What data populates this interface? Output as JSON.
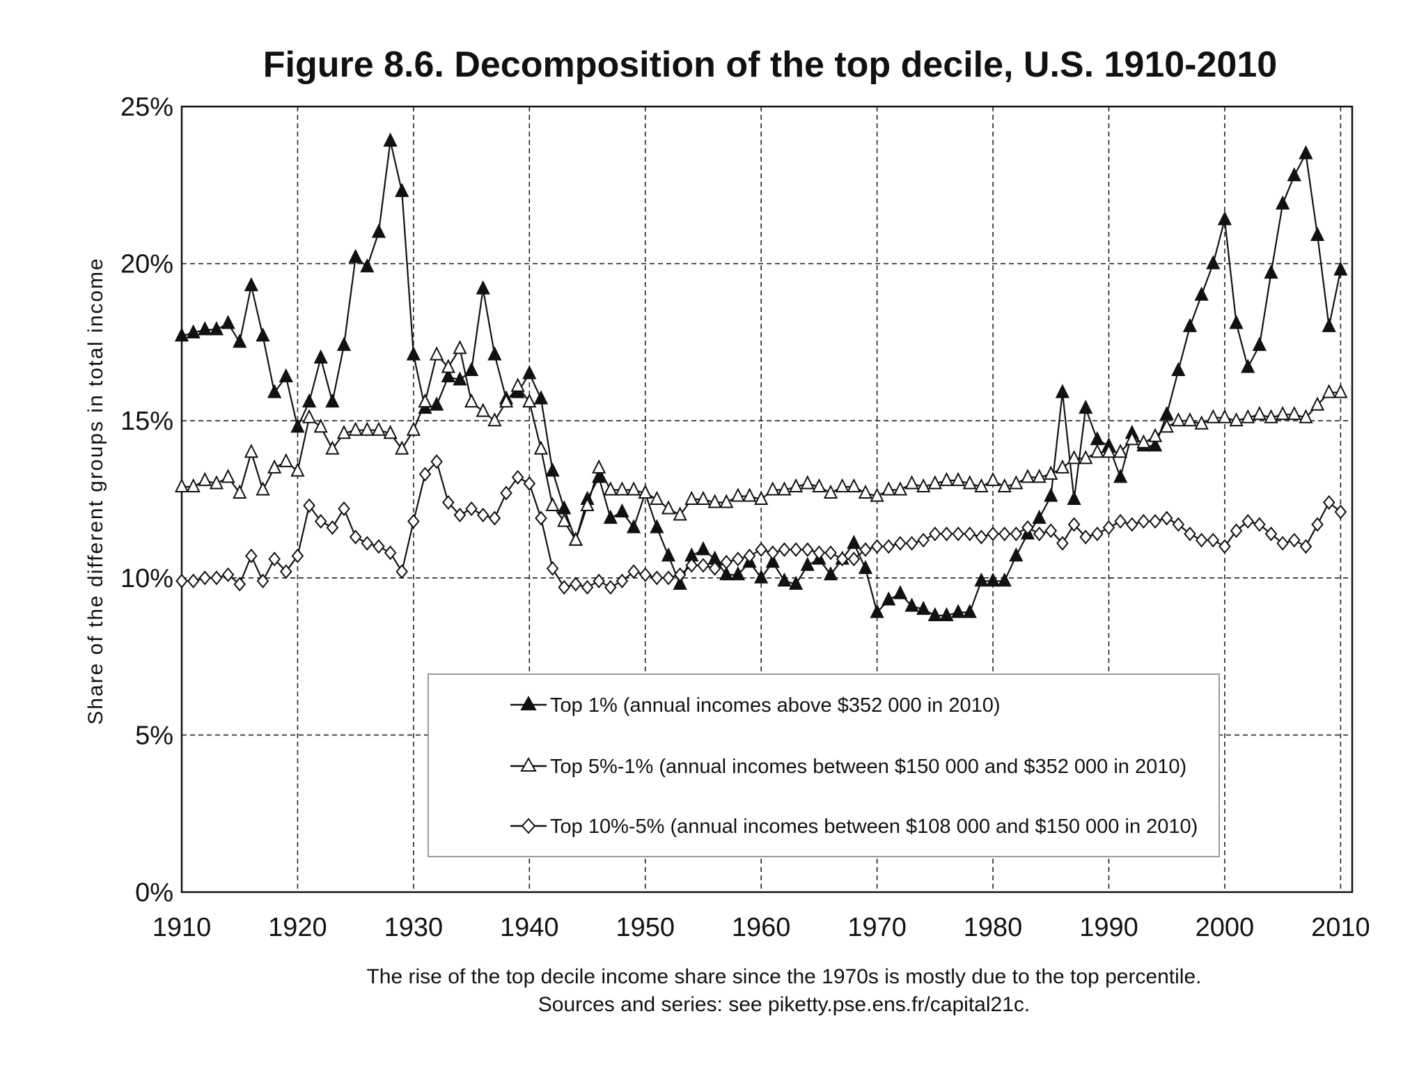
{
  "chart_data": {
    "type": "line",
    "title": "Figure 8.6. Decomposition of the top decile, U.S. 1910-2010",
    "xlabel": "",
    "ylabel": "Share of the different groups in total income",
    "xlim": [
      1910,
      2011
    ],
    "ylim": [
      0,
      25
    ],
    "grid": true,
    "x_ticks": [
      "1910",
      "1920",
      "1930",
      "1940",
      "1950",
      "1960",
      "1970",
      "1980",
      "1990",
      "2000",
      "2010"
    ],
    "y_ticks": [
      "0%",
      "5%",
      "10%",
      "15%",
      "20%",
      "25%"
    ],
    "legend_position": "bottom-center",
    "x": [
      1910,
      1911,
      1912,
      1913,
      1914,
      1915,
      1916,
      1917,
      1918,
      1919,
      1920,
      1921,
      1922,
      1923,
      1924,
      1925,
      1926,
      1927,
      1928,
      1929,
      1930,
      1931,
      1932,
      1933,
      1934,
      1935,
      1936,
      1937,
      1938,
      1939,
      1940,
      1941,
      1942,
      1943,
      1944,
      1945,
      1946,
      1947,
      1948,
      1949,
      1950,
      1951,
      1952,
      1953,
      1954,
      1955,
      1956,
      1957,
      1958,
      1959,
      1960,
      1961,
      1962,
      1963,
      1964,
      1965,
      1966,
      1967,
      1968,
      1969,
      1970,
      1971,
      1972,
      1973,
      1974,
      1975,
      1976,
      1977,
      1978,
      1979,
      1980,
      1981,
      1982,
      1983,
      1984,
      1985,
      1986,
      1987,
      1988,
      1989,
      1990,
      1991,
      1992,
      1993,
      1994,
      1995,
      1996,
      1997,
      1998,
      1999,
      2000,
      2001,
      2002,
      2003,
      2004,
      2005,
      2006,
      2007,
      2008,
      2009,
      2010
    ],
    "series": [
      {
        "name": "Top 1% (annual incomes above $352 000 in 2010)",
        "marker": "filled-triangle",
        "values": [
          17.7,
          17.8,
          17.9,
          17.9,
          18.1,
          17.5,
          19.3,
          17.7,
          15.9,
          16.4,
          14.8,
          15.6,
          17.0,
          15.6,
          17.4,
          20.2,
          19.9,
          21.0,
          23.9,
          22.3,
          17.1,
          15.4,
          15.5,
          16.4,
          16.3,
          16.6,
          19.2,
          17.1,
          15.7,
          15.9,
          16.5,
          15.7,
          13.4,
          12.2,
          11.2,
          12.5,
          13.2,
          11.9,
          12.1,
          11.6,
          12.7,
          11.6,
          10.7,
          9.8,
          10.7,
          10.9,
          10.6,
          10.1,
          10.1,
          10.5,
          10.0,
          10.5,
          9.9,
          9.8,
          10.4,
          10.6,
          10.1,
          10.6,
          11.1,
          10.3,
          8.9,
          9.3,
          9.5,
          9.1,
          9.0,
          8.8,
          8.8,
          8.9,
          8.9,
          9.9,
          9.9,
          9.9,
          10.7,
          11.4,
          11.9,
          12.6,
          15.9,
          12.5,
          15.4,
          14.4,
          14.2,
          13.2,
          14.6,
          14.2,
          14.2,
          15.2,
          16.6,
          18.0,
          19.0,
          20.0,
          21.4,
          18.1,
          16.7,
          17.4,
          19.7,
          21.9,
          22.8,
          23.5,
          20.9,
          18.0,
          19.8
        ]
      },
      {
        "name": "Top 5%-1% (annual incomes between $150 000 and $352 000 in 2010)",
        "marker": "open-triangle",
        "values": [
          12.9,
          12.9,
          13.1,
          13.0,
          13.2,
          12.7,
          14.0,
          12.8,
          13.5,
          13.7,
          13.4,
          15.1,
          14.8,
          14.1,
          14.6,
          14.7,
          14.7,
          14.7,
          14.6,
          14.1,
          14.7,
          15.6,
          17.1,
          16.7,
          17.3,
          15.6,
          15.3,
          15.0,
          15.6,
          16.1,
          15.6,
          14.1,
          12.3,
          11.8,
          11.2,
          12.3,
          13.5,
          12.8,
          12.8,
          12.8,
          12.7,
          12.5,
          12.2,
          12.0,
          12.5,
          12.5,
          12.4,
          12.4,
          12.6,
          12.6,
          12.5,
          12.8,
          12.8,
          12.9,
          13.0,
          12.9,
          12.7,
          12.9,
          12.9,
          12.7,
          12.6,
          12.8,
          12.8,
          13.0,
          12.9,
          13.0,
          13.1,
          13.1,
          13.0,
          12.9,
          13.1,
          12.9,
          13.0,
          13.2,
          13.2,
          13.3,
          13.5,
          13.8,
          13.8,
          14.0,
          14.0,
          14.0,
          14.4,
          14.3,
          14.5,
          14.8,
          15.0,
          15.0,
          14.9,
          15.1,
          15.1,
          15.0,
          15.1,
          15.2,
          15.1,
          15.2,
          15.2,
          15.1,
          15.5,
          15.9,
          15.9
        ]
      },
      {
        "name": "Top 10%-5% (annual incomes between $108 000 and $150 000 in 2010)",
        "marker": "open-diamond",
        "values": [
          9.9,
          9.9,
          10.0,
          10.0,
          10.1,
          9.8,
          10.7,
          9.9,
          10.6,
          10.2,
          10.7,
          12.3,
          11.8,
          11.6,
          12.2,
          11.3,
          11.1,
          11.0,
          10.8,
          10.2,
          11.8,
          13.3,
          13.7,
          12.4,
          12.0,
          12.2,
          12.0,
          11.9,
          12.7,
          13.2,
          13.0,
          11.9,
          10.3,
          9.7,
          9.8,
          9.7,
          9.9,
          9.7,
          9.9,
          10.2,
          10.1,
          10.0,
          10.0,
          10.1,
          10.4,
          10.4,
          10.3,
          10.5,
          10.6,
          10.7,
          10.9,
          10.8,
          10.9,
          10.9,
          10.9,
          10.8,
          10.8,
          10.6,
          10.6,
          10.9,
          11.0,
          11.0,
          11.1,
          11.1,
          11.2,
          11.4,
          11.4,
          11.4,
          11.4,
          11.3,
          11.4,
          11.4,
          11.4,
          11.6,
          11.4,
          11.5,
          11.1,
          11.7,
          11.3,
          11.4,
          11.6,
          11.8,
          11.7,
          11.8,
          11.8,
          11.9,
          11.7,
          11.4,
          11.2,
          11.2,
          11.0,
          11.5,
          11.8,
          11.7,
          11.4,
          11.1,
          11.2,
          11.0,
          11.7,
          12.4,
          12.1
        ]
      }
    ],
    "caption_lines": [
      "The rise of the top decile income share since the 1970s is mostly due to the top percentile.",
      "Sources and series: see piketty.pse.ens.fr/capital21c."
    ]
  }
}
